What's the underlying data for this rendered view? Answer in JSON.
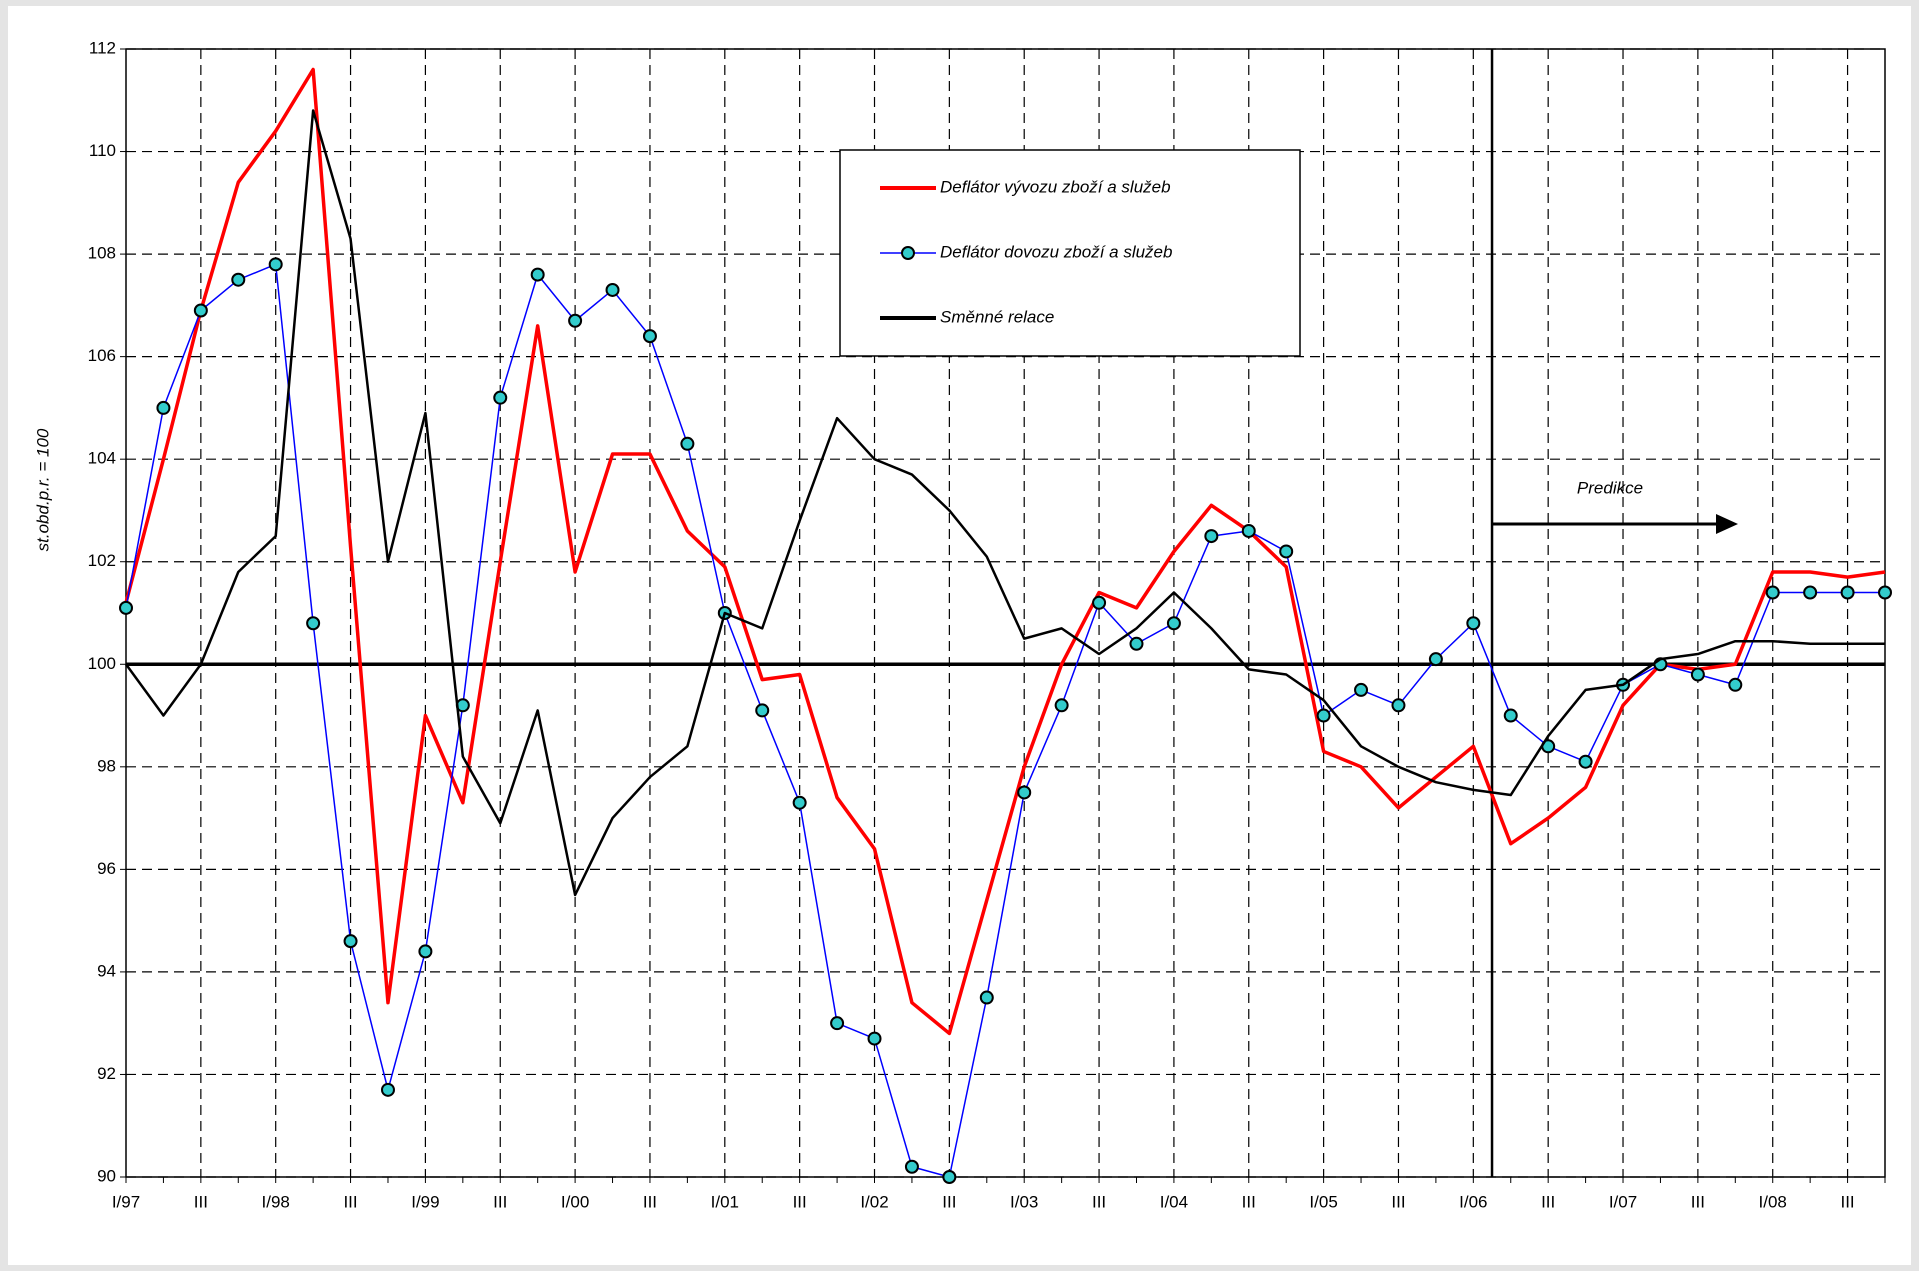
{
  "chart_data": {
    "type": "line",
    "y_label": "st.obd.p.r. = 100",
    "annotation": "Predikce",
    "categories": [
      "I/97",
      null,
      "III",
      null,
      "I/98",
      null,
      "III",
      null,
      "I/99",
      null,
      "III",
      null,
      "I/00",
      null,
      "III",
      null,
      "I/01",
      null,
      "III",
      null,
      "I/02",
      null,
      "III",
      null,
      "I/03",
      null,
      "III",
      null,
      "I/04",
      null,
      "III",
      null,
      "I/05",
      null,
      "III",
      null,
      "I/06",
      null,
      "III",
      null,
      "I/07",
      null,
      "III",
      null,
      "I/08",
      null,
      "III",
      null
    ],
    "series": [
      {
        "name": "Deflátor vývozu zboží a služeb",
        "color": "#ff0000",
        "values": [
          101.2,
          104.0,
          106.9,
          109.4,
          110.4,
          111.6,
          102.3,
          93.4,
          99.0,
          97.3,
          102.0,
          106.6,
          101.8,
          104.1,
          104.1,
          102.6,
          101.9,
          99.7,
          99.8,
          97.4,
          96.4,
          93.4,
          92.8,
          95.4,
          98.0,
          100.0,
          101.4,
          101.1,
          102.2,
          103.1,
          102.6,
          101.9,
          98.3,
          98.0,
          97.2,
          97.8,
          98.4,
          96.5,
          97.0,
          97.6,
          99.2,
          100.0,
          99.9,
          100.0,
          101.8,
          101.8,
          101.7,
          101.8
        ]
      },
      {
        "name": "Deflátor dovozu zboží a služeb",
        "color": "#0000ff",
        "marker_color": "#33cccc",
        "values": [
          101.1,
          105.0,
          106.9,
          107.5,
          107.8,
          100.8,
          94.6,
          91.7,
          94.4,
          99.2,
          105.2,
          107.6,
          106.7,
          107.3,
          106.4,
          104.3,
          101.0,
          99.1,
          97.3,
          93.0,
          92.7,
          90.2,
          90.0,
          93.5,
          97.5,
          99.2,
          101.2,
          100.4,
          100.8,
          102.5,
          102.6,
          102.2,
          99.0,
          99.5,
          99.2,
          100.1,
          100.8,
          99.0,
          98.4,
          98.1,
          99.6,
          100.0,
          99.8,
          99.6,
          101.4,
          101.4,
          101.4,
          101.4
        ]
      },
      {
        "name": "Směnné relace",
        "color": "#000000",
        "values": [
          100.0,
          99.0,
          100.0,
          101.8,
          102.5,
          110.8,
          108.3,
          102.0,
          104.9,
          98.2,
          96.9,
          99.1,
          95.5,
          97.0,
          97.8,
          98.4,
          101.0,
          100.7,
          102.8,
          104.8,
          104.0,
          103.7,
          103.0,
          102.1,
          100.5,
          100.7,
          100.2,
          100.7,
          101.4,
          100.7,
          99.9,
          99.8,
          99.3,
          98.4,
          98.0,
          97.7,
          97.55,
          97.45,
          98.6,
          99.5,
          99.6,
          100.1,
          100.2,
          100.45,
          100.45,
          100.4,
          100.4,
          100.4
        ]
      }
    ],
    "reference_line": 100,
    "ylim": [
      90,
      112
    ],
    "yticks": [
      90,
      92,
      94,
      96,
      98,
      100,
      102,
      104,
      106,
      108,
      110,
      112
    ],
    "grid": true,
    "legend": "upper center"
  }
}
